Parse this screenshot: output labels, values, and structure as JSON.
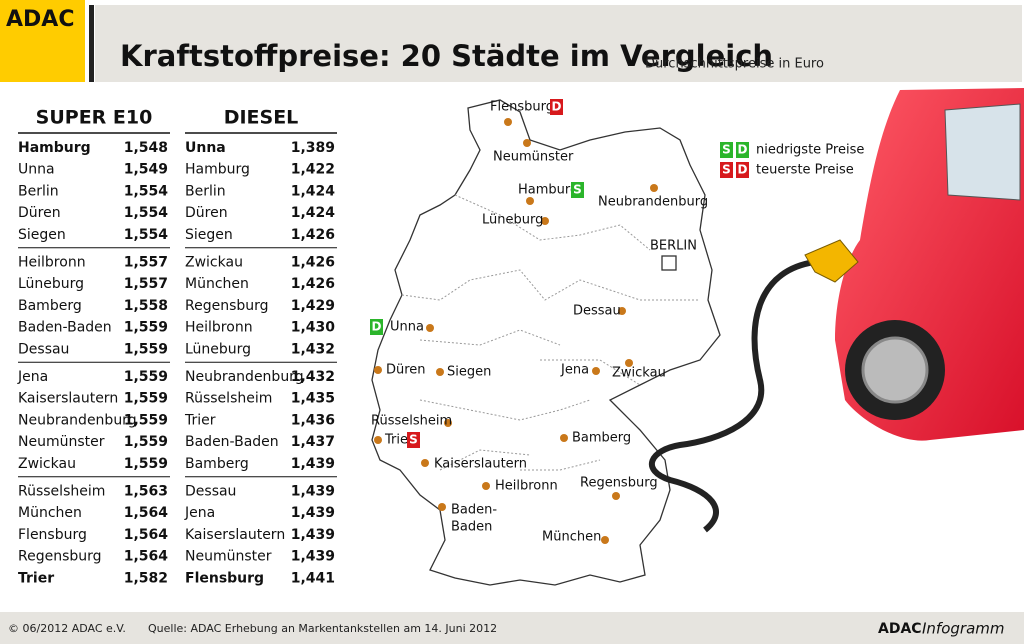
{
  "header": {
    "logo": "ADAC",
    "title": "Kraftstoffpreise: 20 Städte im Vergleich",
    "subtitle": "Durchschnittspreise in Euro"
  },
  "tables": [
    {
      "title": "SUPER E10",
      "rows": [
        [
          "Hamburg",
          "1,548"
        ],
        [
          "Unna",
          "1,549"
        ],
        [
          "Berlin",
          "1,554"
        ],
        [
          "Düren",
          "1,554"
        ],
        [
          "Siegen",
          "1,554"
        ],
        [
          "Heilbronn",
          "1,557"
        ],
        [
          "Lüneburg",
          "1,557"
        ],
        [
          "Bamberg",
          "1,558"
        ],
        [
          "Baden-Baden",
          "1,559"
        ],
        [
          "Dessau",
          "1,559"
        ],
        [
          "Jena",
          "1,559"
        ],
        [
          "Kaiserslautern",
          "1,559"
        ],
        [
          "Neubrandenburg",
          "1,559"
        ],
        [
          "Neumünster",
          "1,559"
        ],
        [
          "Zwickau",
          "1,559"
        ],
        [
          "Rüsselsheim",
          "1,563"
        ],
        [
          "München",
          "1,564"
        ],
        [
          "Flensburg",
          "1,564"
        ],
        [
          "Regensburg",
          "1,564"
        ],
        [
          "Trier",
          "1,582"
        ]
      ]
    },
    {
      "title": "DIESEL",
      "rows": [
        [
          "Unna",
          "1,389"
        ],
        [
          "Hamburg",
          "1,422"
        ],
        [
          "Berlin",
          "1,424"
        ],
        [
          "Düren",
          "1,424"
        ],
        [
          "Siegen",
          "1,426"
        ],
        [
          "Zwickau",
          "1,426"
        ],
        [
          "München",
          "1,426"
        ],
        [
          "Regensburg",
          "1,429"
        ],
        [
          "Heilbronn",
          "1,430"
        ],
        [
          "Lüneburg",
          "1,432"
        ],
        [
          "Neubrandenburg",
          "1,432"
        ],
        [
          "Rüsselsheim",
          "1,435"
        ],
        [
          "Trier",
          "1,436"
        ],
        [
          "Baden-Baden",
          "1,437"
        ],
        [
          "Bamberg",
          "1,439"
        ],
        [
          "Dessau",
          "1,439"
        ],
        [
          "Jena",
          "1,439"
        ],
        [
          "Kaiserslautern",
          "1,439"
        ],
        [
          "Neumünster",
          "1,439"
        ],
        [
          "Flensburg",
          "1,441"
        ]
      ]
    }
  ],
  "map": {
    "cities": [
      {
        "lines": [
          "Flensburg"
        ],
        "badges": [
          {
            "text": "D",
            "color": "#d7191c"
          }
        ]
      },
      {
        "lines": [
          "Neumünster"
        ]
      },
      {
        "lines": [
          "Hamburg"
        ],
        "badges": [
          {
            "text": "S",
            "color": "#2bb52b"
          }
        ]
      },
      {
        "lines": [
          "Neubrandenburg"
        ]
      },
      {
        "lines": [
          "Lüneburg"
        ]
      },
      {
        "lines": [
          "BERLIN"
        ]
      },
      {
        "lines": [
          "Dessau"
        ]
      },
      {
        "lines": [
          "Unna"
        ],
        "badges": [
          {
            "text": "D",
            "color": "#2bb52b"
          }
        ]
      },
      {
        "lines": [
          "Düren"
        ]
      },
      {
        "lines": [
          "Siegen"
        ]
      },
      {
        "lines": [
          "Jena"
        ]
      },
      {
        "lines": [
          "Zwickau"
        ]
      },
      {
        "lines": [
          "Rüsselsheim"
        ]
      },
      {
        "lines": [
          "Trier"
        ],
        "badges": [
          {
            "text": "S",
            "color": "#d7191c"
          }
        ]
      },
      {
        "lines": [
          "Bamberg"
        ]
      },
      {
        "lines": [
          "Kaiserslautern"
        ]
      },
      {
        "lines": [
          "Heilbronn"
        ]
      },
      {
        "lines": [
          "Regensburg"
        ]
      },
      {
        "lines": [
          "Baden-",
          "Baden"
        ]
      },
      {
        "lines": [
          "München"
        ]
      }
    ]
  },
  "legend": [
    {
      "badges": [
        {
          "text": "S",
          "color": "#2bb52b"
        },
        {
          "text": "D",
          "color": "#2bb52b"
        }
      ],
      "label": "niedrigste Preise"
    },
    {
      "badges": [
        {
          "text": "S",
          "color": "#d7191c"
        },
        {
          "text": "D",
          "color": "#d7191c"
        }
      ],
      "label": "teuerste Preise"
    }
  ],
  "footer": {
    "copyright": "© 06/2012 ADAC e.V.",
    "source": "Quelle: ADAC Erhebung an Markentankstellen am 14. Juni 2012",
    "brand": "ADAC",
    "brand_suffix": "Infogramm"
  }
}
